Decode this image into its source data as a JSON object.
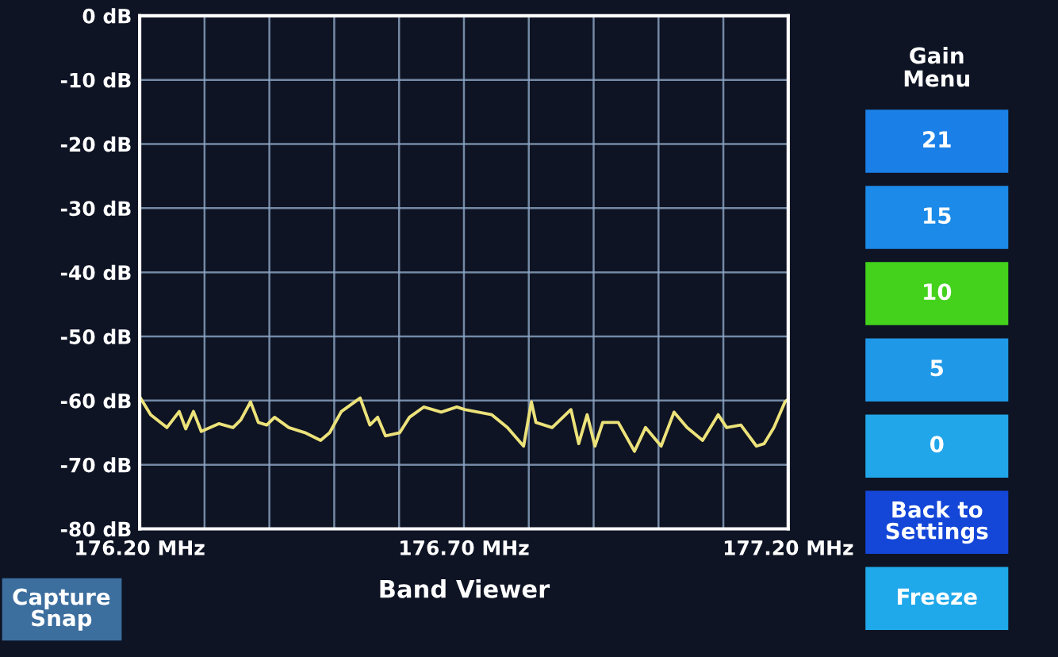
{
  "chart_data": {
    "type": "line",
    "title": "Band Viewer",
    "annotations": [
      "Gain\nMenu",
      "21",
      "15",
      "10",
      "5",
      "0",
      "Back to\nSettings",
      "Freeze",
      "Capture\nSnap"
    ],
    "xlim": [
      176.2,
      177.2
    ],
    "xticks": [
      {
        "value": 176.2,
        "label": "176.20 MHz"
      },
      {
        "value": 176.3,
        "label": null
      },
      {
        "value": 176.4,
        "label": null
      },
      {
        "value": 176.5,
        "label": null
      },
      {
        "value": 176.6,
        "label": null
      },
      {
        "value": 176.7,
        "label": "176.70 MHz"
      },
      {
        "value": 176.8,
        "label": null
      },
      {
        "value": 176.9,
        "label": null
      },
      {
        "value": 177.0,
        "label": null
      },
      {
        "value": 177.1,
        "label": null
      },
      {
        "value": 177.2,
        "label": "177.20 MHz"
      }
    ],
    "ylim": [
      -80,
      0
    ],
    "yticks": [
      {
        "value": -80,
        "label": "-80 dB"
      },
      {
        "value": -70,
        "label": "-70 dB"
      },
      {
        "value": -60,
        "label": "-60 dB"
      },
      {
        "value": -50,
        "label": "-50 dB"
      },
      {
        "value": -40,
        "label": "-40 dB"
      },
      {
        "value": -30,
        "label": "-30 dB"
      },
      {
        "value": -20,
        "label": "-20 dB"
      },
      {
        "value": -10,
        "label": "-10 dB"
      },
      {
        "value": 0,
        "label": "0 dB"
      }
    ],
    "grid": true,
    "series": [
      {
        "color": "#ece27a",
        "x": [
          176.2,
          176.217,
          176.242,
          176.261,
          176.271,
          176.283,
          176.295,
          176.322,
          176.344,
          176.356,
          176.371,
          176.383,
          176.396,
          176.408,
          176.43,
          176.455,
          176.479,
          176.493,
          176.511,
          176.54,
          176.555,
          176.567,
          176.579,
          176.601,
          176.616,
          176.638,
          176.665,
          176.689,
          176.701,
          176.743,
          176.767,
          176.792,
          176.804,
          176.811,
          176.836,
          176.865,
          176.877,
          176.89,
          176.902,
          176.914,
          176.938,
          176.963,
          176.98,
          177.004,
          177.024,
          177.044,
          177.068,
          177.092,
          177.105,
          177.127,
          177.151,
          177.163,
          177.178,
          177.195,
          177.2
        ],
        "values": [
          -59.4,
          -62.2,
          -64.2,
          -61.7,
          -64.4,
          -61.7,
          -64.8,
          -63.6,
          -64.2,
          -63.0,
          -60.2,
          -63.4,
          -63.8,
          -62.6,
          -64.2,
          -65.0,
          -66.2,
          -65.0,
          -61.7,
          -59.6,
          -63.8,
          -62.6,
          -65.5,
          -65.0,
          -62.6,
          -61.0,
          -61.8,
          -61.0,
          -61.4,
          -62.2,
          -64.2,
          -67.1,
          -60.2,
          -63.4,
          -64.2,
          -61.4,
          -66.7,
          -62.2,
          -67.1,
          -63.4,
          -63.4,
          -67.9,
          -64.2,
          -67.1,
          -61.8,
          -64.2,
          -66.2,
          -62.2,
          -64.2,
          -63.8,
          -67.1,
          -66.7,
          -64.2,
          -60.2,
          -59.8
        ]
      }
    ]
  }
}
